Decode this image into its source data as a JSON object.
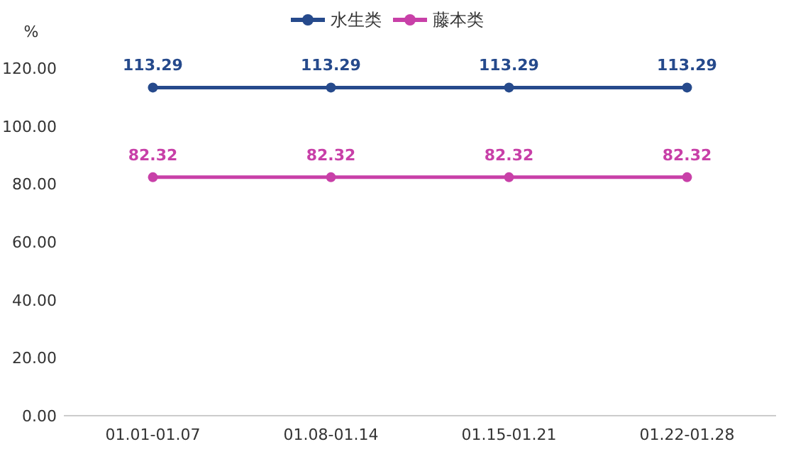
{
  "chart_data": {
    "type": "line",
    "ylabel": "%",
    "categories": [
      "01.01-01.07",
      "01.08-01.14",
      "01.15-01.21",
      "01.22-01.28"
    ],
    "series": [
      {
        "name": "水生类",
        "color": "#264a8c",
        "values": [
          113.29,
          113.29,
          113.29,
          113.29
        ]
      },
      {
        "name": "藤本类",
        "color": "#c840a8",
        "values": [
          82.32,
          82.32,
          82.32,
          82.32
        ]
      }
    ],
    "ylim": [
      0,
      120
    ],
    "yticks": [
      {
        "value": 0,
        "label": "0.00"
      },
      {
        "value": 20,
        "label": "20.00"
      },
      {
        "value": 40,
        "label": "40.00"
      },
      {
        "value": 60,
        "label": "60.00"
      },
      {
        "value": 80,
        "label": "80.00"
      },
      {
        "value": 100,
        "label": "100.00"
      },
      {
        "value": 120,
        "label": "120.00"
      }
    ],
    "data_labels": true,
    "legend": "top",
    "marker": "circle",
    "line_style": "solid",
    "grid": false
  }
}
